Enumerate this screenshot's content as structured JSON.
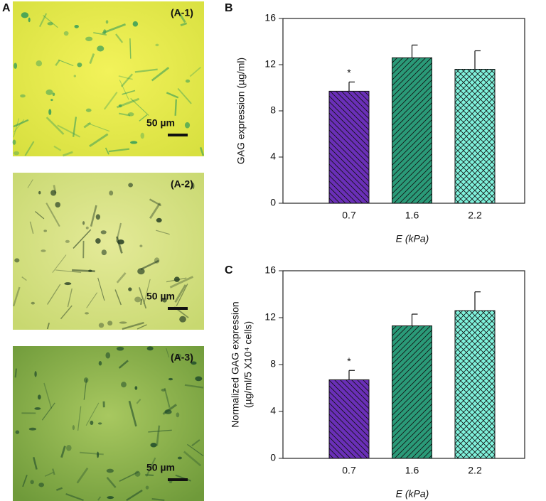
{
  "figure": {
    "panel_label": "A",
    "micrographs": [
      {
        "label": "(A-1)",
        "scale_bar": "50 µm"
      },
      {
        "label": "(A-2)",
        "scale_bar": "50 µm"
      },
      {
        "label": "(A-3)",
        "scale_bar": "50 µm"
      }
    ]
  },
  "chart_data": [
    {
      "type": "bar",
      "panel_label": "B",
      "ylabel": [
        "GAG expression (µg/ml)"
      ],
      "xlabel": "E (kPa)",
      "categories": [
        "0.7",
        "1.6",
        "2.2"
      ],
      "values": [
        9.7,
        12.6,
        11.6
      ],
      "errors": [
        0.8,
        1.1,
        1.6
      ],
      "value_annotations": [
        "*",
        null,
        null
      ],
      "colors": [
        "#6a2fb8",
        "#2a9a78",
        "#7ff2dc"
      ],
      "hatches": [
        "backslash",
        "slash",
        "cross"
      ],
      "ylim": [
        0,
        16
      ],
      "yticks": [
        0,
        4,
        8,
        12,
        16
      ]
    },
    {
      "type": "bar",
      "panel_label": "C",
      "ylabel": [
        "Normalized GAG expression",
        "(µg/ml/5 X10⁴ cells)"
      ],
      "xlabel": "E (kPa)",
      "categories": [
        "0.7",
        "1.6",
        "2.2"
      ],
      "values": [
        6.7,
        11.3,
        12.6
      ],
      "errors": [
        0.8,
        1.0,
        1.6
      ],
      "value_annotations": [
        "*",
        null,
        null
      ],
      "colors": [
        "#6a2fb8",
        "#2a9a78",
        "#7ff2dc"
      ],
      "hatches": [
        "backslash",
        "slash",
        "cross"
      ],
      "ylim": [
        0,
        16
      ],
      "yticks": [
        0,
        4,
        8,
        12,
        16
      ]
    }
  ]
}
